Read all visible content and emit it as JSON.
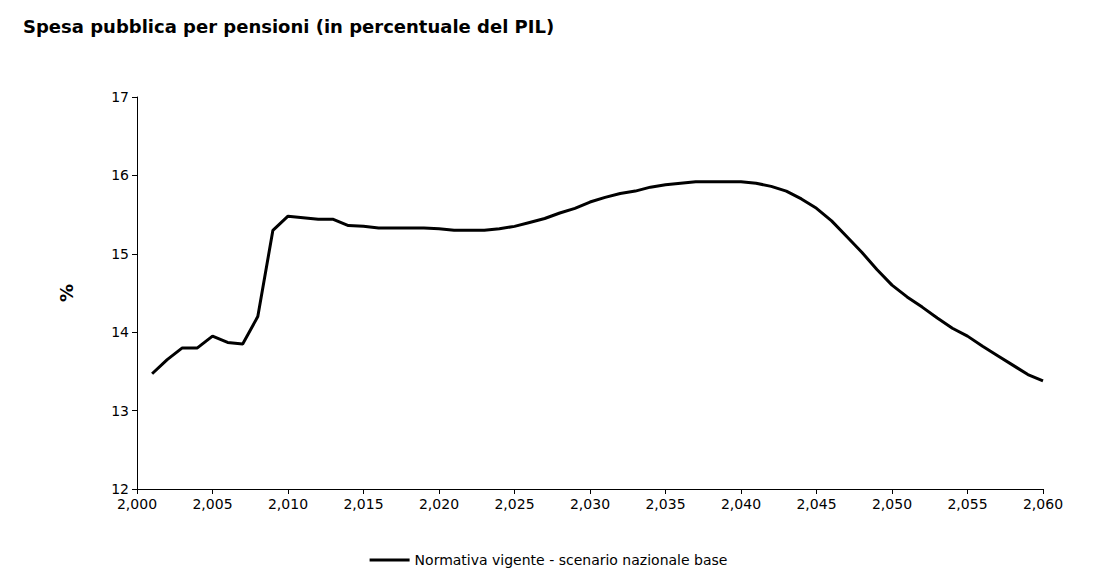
{
  "chart_data": {
    "type": "line",
    "title": "Spesa pubblica per pensioni (in percentuale del PIL)",
    "y_label": "%",
    "x": [
      2001,
      2002,
      2003,
      2004,
      2005,
      2006,
      2007,
      2008,
      2009,
      2010,
      2011,
      2012,
      2013,
      2014,
      2015,
      2016,
      2017,
      2018,
      2019,
      2020,
      2021,
      2022,
      2023,
      2024,
      2025,
      2026,
      2027,
      2028,
      2029,
      2030,
      2031,
      2032,
      2033,
      2034,
      2035,
      2036,
      2037,
      2038,
      2039,
      2040,
      2041,
      2042,
      2043,
      2044,
      2045,
      2046,
      2047,
      2048,
      2049,
      2050,
      2051,
      2052,
      2053,
      2054,
      2055,
      2056,
      2057,
      2058,
      2059,
      2060
    ],
    "series": [
      {
        "name": "Normativa vigente - scenario nazionale base",
        "color": "#000000",
        "values": [
          13.47,
          13.65,
          13.8,
          13.8,
          13.95,
          13.87,
          13.85,
          14.2,
          15.3,
          15.48,
          15.46,
          15.44,
          15.44,
          15.36,
          15.35,
          15.33,
          15.33,
          15.33,
          15.33,
          15.32,
          15.3,
          15.3,
          15.3,
          15.32,
          15.35,
          15.4,
          15.45,
          15.52,
          15.58,
          15.66,
          15.72,
          15.77,
          15.8,
          15.85,
          15.88,
          15.9,
          15.92,
          15.92,
          15.92,
          15.92,
          15.9,
          15.86,
          15.8,
          15.7,
          15.58,
          15.42,
          15.22,
          15.02,
          14.8,
          14.6,
          14.45,
          14.32,
          14.18,
          14.05,
          13.95,
          13.82,
          13.7,
          13.58,
          13.46,
          13.38
        ]
      }
    ],
    "xlim": [
      2000,
      2060
    ],
    "xticks": [
      2000,
      2005,
      2010,
      2015,
      2020,
      2025,
      2030,
      2035,
      2040,
      2045,
      2050,
      2055,
      2060
    ],
    "ylim": [
      12,
      17
    ],
    "yticks": [
      12,
      13,
      14,
      15,
      16,
      17
    ],
    "grid": false,
    "legend": "bottom"
  }
}
